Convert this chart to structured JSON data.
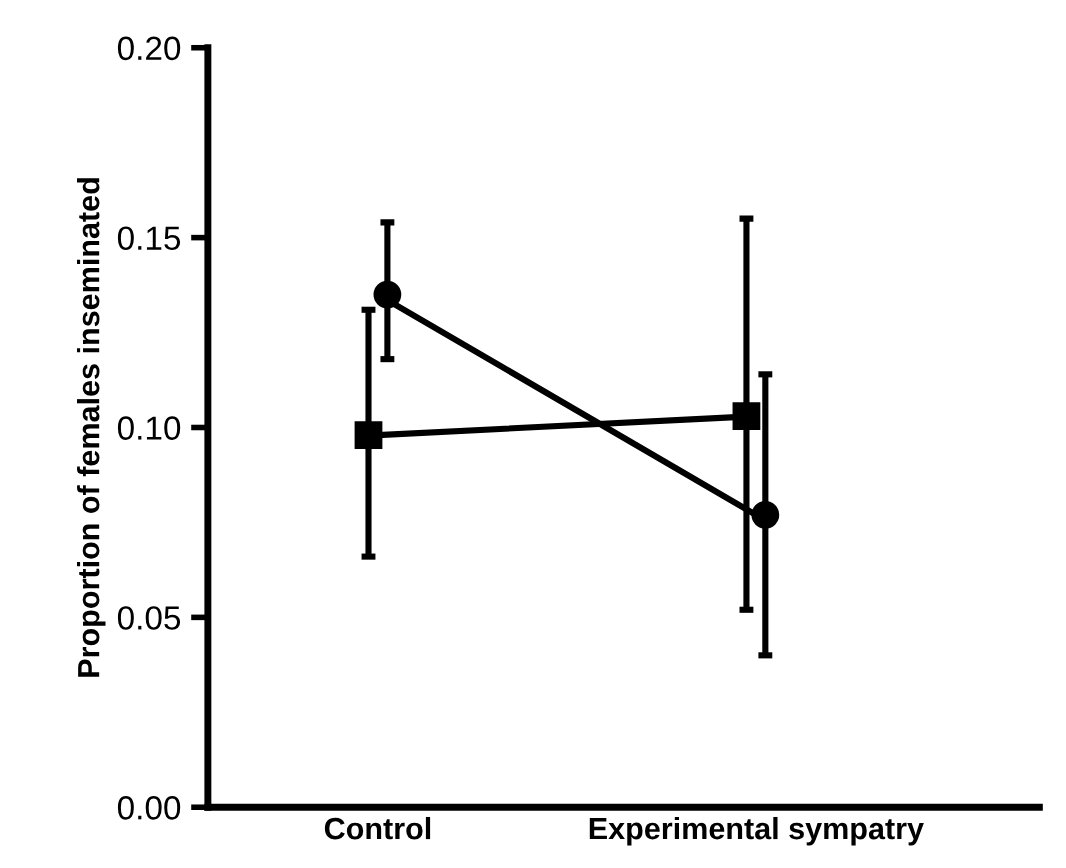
{
  "chart_data": {
    "type": "line",
    "ylabel": "Proportion of females inseminated",
    "categories": [
      "Control",
      "Experimental sympatry"
    ],
    "series": [
      {
        "color": "#000000",
        "marker": "square",
        "values": [
          0.098,
          0.103
        ],
        "errors": [
          [
            0.066,
            0.131
          ],
          [
            0.052,
            0.155
          ]
        ]
      },
      {
        "color": "#000000",
        "marker": "circle",
        "values": [
          0.135,
          0.077
        ],
        "errors": [
          [
            0.118,
            0.154
          ],
          [
            0.04,
            0.114
          ]
        ]
      }
    ],
    "ylim": [
      0,
      0.2
    ],
    "yticks": [
      {
        "value": 0,
        "label": "0.00"
      },
      {
        "value": 0.05,
        "label": "0.05"
      },
      {
        "value": 0.1,
        "label": "0.10"
      },
      {
        "value": 0.15,
        "label": "0.15"
      },
      {
        "value": 0.2,
        "label": "0.20"
      }
    ],
    "grid": false,
    "legend": false,
    "line_style": "solid"
  }
}
